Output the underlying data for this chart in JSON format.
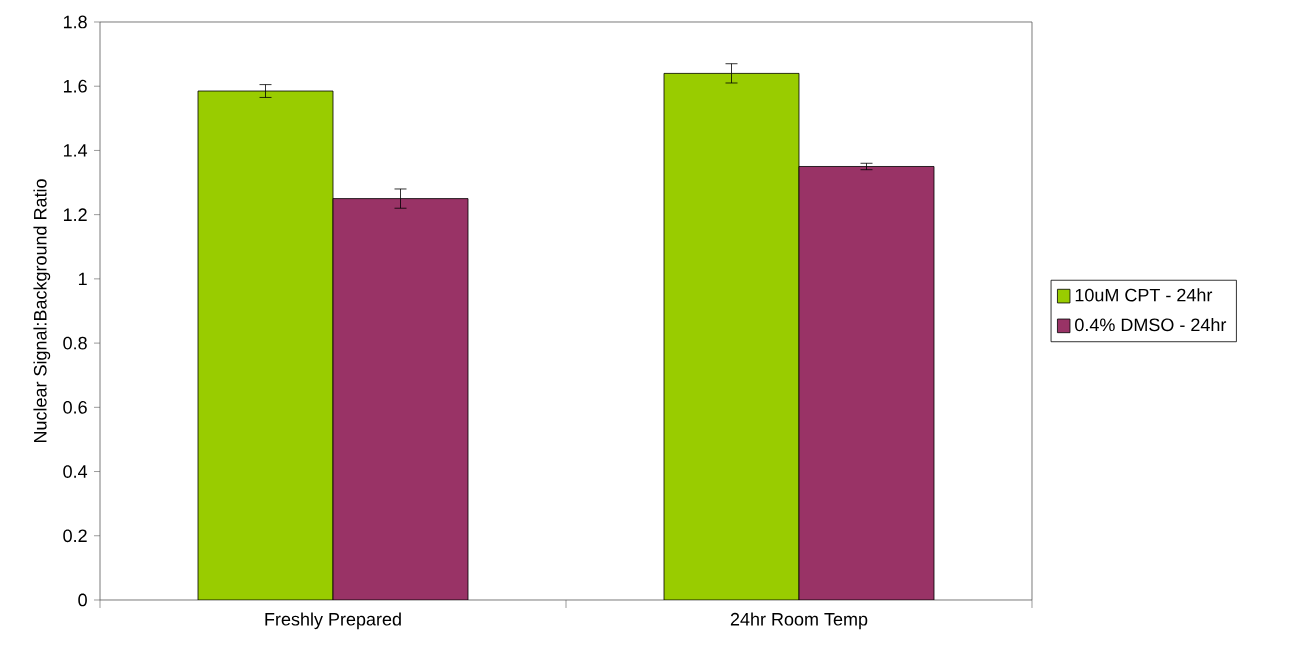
{
  "chart_data": {
    "type": "bar",
    "ylabel": "Nuclear Signal:Background Ratio",
    "categories": [
      "Freshly Prepared",
      "24hr Room Temp"
    ],
    "series": [
      {
        "name": "10uM CPT - 24hr",
        "color": "#99cc00",
        "values": [
          1.585,
          1.64
        ],
        "errors": [
          0.02,
          0.03
        ]
      },
      {
        "name": "0.4% DMSO - 24hr",
        "color": "#993366",
        "values": [
          1.25,
          1.35
        ],
        "errors": [
          0.03,
          0.01
        ]
      }
    ],
    "ylim": [
      0,
      1.8
    ],
    "yticks": [
      0,
      0.2,
      0.4,
      0.6,
      0.8,
      1,
      1.2,
      1.4,
      1.6,
      1.8
    ],
    "grid": false,
    "legend": "right"
  }
}
